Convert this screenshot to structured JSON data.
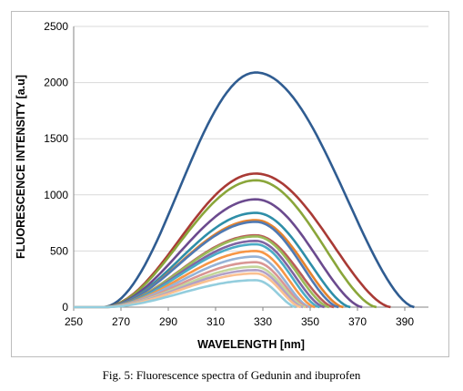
{
  "caption": "Fig. 5: Fluorescence spectra of Gedunin and ibuprofen",
  "chart_data": {
    "type": "line",
    "title": "",
    "xlabel": "WAVELENGTH [nm]",
    "ylabel": "FLUORESCENCE INTENSITY [a.u]",
    "xlim": [
      250,
      400
    ],
    "ylim": [
      0,
      2500
    ],
    "xticks": [
      250,
      270,
      290,
      310,
      330,
      350,
      370,
      390
    ],
    "yticks": [
      0,
      500,
      1000,
      1500,
      2000,
      2500
    ],
    "grid": "horizontal",
    "legend": "none",
    "peak_wavelength": 327,
    "onset_wavelength": 262,
    "series": [
      {
        "color": "#2f5c91",
        "peak": 2090,
        "end": 394
      },
      {
        "color": "#a93a35",
        "peak": 1190,
        "end": 384
      },
      {
        "color": "#8aa63a",
        "peak": 1130,
        "end": 378
      },
      {
        "color": "#6b4a8e",
        "peak": 960,
        "end": 372
      },
      {
        "color": "#2e8ea8",
        "peak": 840,
        "end": 367
      },
      {
        "color": "#e5832d",
        "peak": 775,
        "end": 364
      },
      {
        "color": "#4f79b3",
        "peak": 760,
        "end": 362
      },
      {
        "color": "#b95d58",
        "peak": 640,
        "end": 360
      },
      {
        "color": "#9bbb59",
        "peak": 630,
        "end": 358
      },
      {
        "color": "#8064a2",
        "peak": 590,
        "end": 356
      },
      {
        "color": "#4bacc6",
        "peak": 560,
        "end": 354
      },
      {
        "color": "#f79646",
        "peak": 500,
        "end": 352
      },
      {
        "color": "#95b3d7",
        "peak": 450,
        "end": 350
      },
      {
        "color": "#d99694",
        "peak": 400,
        "end": 349
      },
      {
        "color": "#c3d69b",
        "peak": 360,
        "end": 348
      },
      {
        "color": "#b2a1c7",
        "peak": 330,
        "end": 347
      },
      {
        "color": "#fac090",
        "peak": 300,
        "end": 346
      },
      {
        "color": "#93cddd",
        "peak": 240,
        "end": 344
      }
    ]
  }
}
